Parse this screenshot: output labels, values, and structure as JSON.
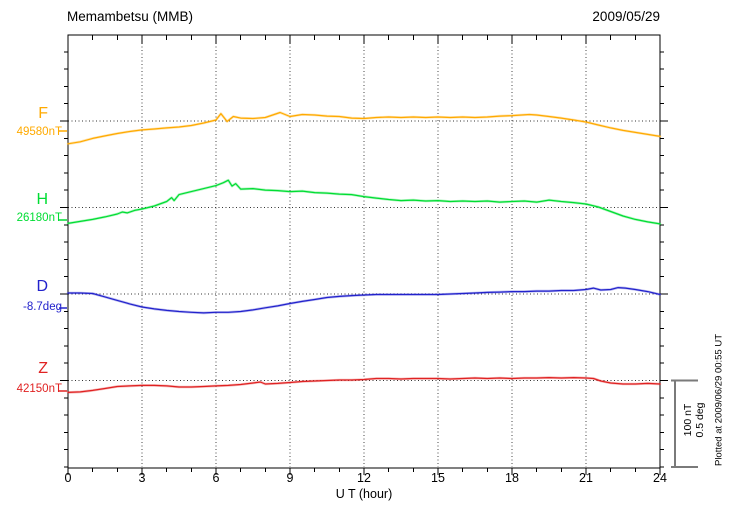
{
  "chart_data": {
    "type": "line",
    "station": "Memambetsu (MMB)",
    "date": "2009/05/29",
    "xlabel": "U T (hour)",
    "x_range_hours": [
      0,
      24
    ],
    "x_tick_labels": [
      "0",
      "3",
      "6",
      "9",
      "12",
      "15",
      "18",
      "21",
      "24"
    ],
    "x_tick_step_hours": 3,
    "x_minor_tick_hours": 1,
    "grid": {
      "vertical_dotted_every_hours": 3,
      "horizontal_dotted_baseline_per_trace": true
    },
    "scale_bar": {
      "lines": [
        "100 nT",
        "0.5 deg"
      ],
      "span_nT": 100,
      "span_deg": 0.5
    },
    "plotted_note": "Plotted at 2009/06/29 00:55 UT",
    "series": [
      {
        "name": "F",
        "baseline_label": "49580nT",
        "unit": "nT",
        "color": "#ffaa00",
        "x_hours": [
          0,
          0.5,
          1,
          1.5,
          2,
          2.5,
          3,
          3.5,
          4,
          4.5,
          5,
          5.5,
          6,
          6.2,
          6.45,
          6.7,
          7,
          7.5,
          8,
          8.6,
          9,
          9.5,
          10,
          10.5,
          11,
          11.5,
          12,
          12.5,
          13,
          13.5,
          14,
          14.5,
          15,
          15.5,
          16,
          16.5,
          17,
          17.5,
          18,
          18.7,
          19,
          19.5,
          20,
          20.5,
          21,
          21.5,
          22,
          22.5,
          23,
          23.5,
          24
        ],
        "offsets_from_baseline": [
          -26.4,
          -24.1,
          -20.1,
          -17.2,
          -14.4,
          -12.1,
          -10.3,
          -9.2,
          -8,
          -6.9,
          -5.2,
          -2.3,
          1.1,
          8.6,
          -0.6,
          5.2,
          3.4,
          2.9,
          4,
          9.8,
          5.2,
          7.5,
          6.9,
          5.7,
          5.2,
          3.4,
          2.9,
          4,
          4.6,
          4,
          4.6,
          4,
          4.6,
          4,
          4.6,
          4,
          4.6,
          5.7,
          6.3,
          7.5,
          6.9,
          5.2,
          3.4,
          1.1,
          -1.1,
          -4.6,
          -8,
          -10.9,
          -13.2,
          -15.5,
          -17.8
        ]
      },
      {
        "name": "H",
        "baseline_label": "26180nT",
        "unit": "nT",
        "color": "#00dd33",
        "x_hours": [
          0,
          0.5,
          1,
          1.5,
          2,
          2.2,
          2.4,
          2.7,
          3,
          3.5,
          4,
          4.2,
          4.3,
          4.5,
          5,
          5.5,
          6,
          6.3,
          6.5,
          6.65,
          6.8,
          7,
          7.5,
          8,
          8.5,
          9,
          9.5,
          10,
          10.5,
          11,
          11.5,
          12,
          12.5,
          13,
          13.5,
          14,
          14.5,
          15,
          15.5,
          16,
          16.5,
          17,
          17.5,
          18,
          18.5,
          19,
          19.5,
          20,
          20.5,
          21,
          21.5,
          22,
          22.5,
          23,
          23.5,
          24
        ],
        "offsets_from_baseline": [
          -18.4,
          -16.1,
          -13.8,
          -10.9,
          -7.5,
          -5.2,
          -6.3,
          -3.4,
          -1.7,
          1.7,
          6.9,
          11.5,
          8,
          14.9,
          18.4,
          21.8,
          25.3,
          28.7,
          31.6,
          24.7,
          27.6,
          21.3,
          21.8,
          20.1,
          19.5,
          18.4,
          19,
          17.2,
          16.7,
          15.5,
          14.9,
          12.6,
          10.9,
          9.2,
          8,
          8.6,
          7.5,
          8,
          6.9,
          7.5,
          6.9,
          7.5,
          6.3,
          6.9,
          7.5,
          6.3,
          8.6,
          6.9,
          5.7,
          4,
          0.6,
          -4.6,
          -9.8,
          -13.8,
          -16.7,
          -19
        ]
      },
      {
        "name": "D",
        "baseline_label": "-8.7deg",
        "unit": "deg",
        "color": "#2222cc",
        "x_hours": [
          0,
          0.5,
          1,
          1.5,
          2,
          2.5,
          3,
          3.5,
          4,
          4.5,
          5,
          5.5,
          6,
          6.5,
          7,
          7.5,
          8,
          8.5,
          9,
          9.5,
          10,
          10.5,
          11,
          11.5,
          12,
          12.5,
          13,
          13.5,
          14,
          14.5,
          15,
          15.5,
          16,
          16.5,
          17,
          17.5,
          18,
          18.5,
          19,
          19.5,
          20,
          20.5,
          21,
          21.3,
          21.6,
          22,
          22.3,
          22.6,
          23,
          23.5,
          24
        ],
        "offsets_from_baseline": [
          0.006,
          0.006,
          0.003,
          -0.017,
          -0.037,
          -0.057,
          -0.075,
          -0.086,
          -0.095,
          -0.101,
          -0.106,
          -0.109,
          -0.106,
          -0.106,
          -0.101,
          -0.092,
          -0.08,
          -0.069,
          -0.055,
          -0.043,
          -0.032,
          -0.02,
          -0.014,
          -0.009,
          -0.006,
          -0.003,
          -0.003,
          -0.003,
          -0.003,
          -0.003,
          -0.003,
          0,
          0.003,
          0.006,
          0.009,
          0.011,
          0.014,
          0.014,
          0.017,
          0.017,
          0.02,
          0.02,
          0.026,
          0.034,
          0.023,
          0.026,
          0.037,
          0.034,
          0.026,
          0.014,
          -0.003
        ]
      },
      {
        "name": "Z",
        "baseline_label": "42150nT",
        "unit": "nT",
        "color": "#e02222",
        "x_hours": [
          0,
          0.5,
          1,
          1.5,
          2,
          2.5,
          3,
          3.5,
          4,
          4.5,
          5,
          5.5,
          6,
          6.5,
          7,
          7.5,
          7.8,
          8,
          8.5,
          9,
          9.5,
          10,
          10.5,
          11,
          11.5,
          12,
          12.5,
          13,
          13.5,
          14,
          14.5,
          15,
          15.5,
          16,
          16.5,
          17,
          17.5,
          18,
          18.5,
          19,
          19.5,
          20,
          20.5,
          21,
          21.3,
          21.6,
          22,
          22.5,
          23,
          23.5,
          24
        ],
        "offsets_from_baseline": [
          -13.8,
          -13.2,
          -11.5,
          -9.2,
          -6.9,
          -6.3,
          -5.7,
          -5.7,
          -6.3,
          -7.5,
          -7.5,
          -6.9,
          -6.3,
          -5.7,
          -4.6,
          -2.9,
          -1.7,
          -4,
          -3.4,
          -2.3,
          -1.1,
          -0.6,
          0,
          0.6,
          0.6,
          1.1,
          2.3,
          2.3,
          1.7,
          2.3,
          2.3,
          2.3,
          1.7,
          2.3,
          2.9,
          2.3,
          2.9,
          2.3,
          2.9,
          2.9,
          3.4,
          2.9,
          3.4,
          2.9,
          2.3,
          -0.6,
          -2.9,
          -4,
          -4,
          -3.4,
          -4
        ]
      }
    ]
  }
}
